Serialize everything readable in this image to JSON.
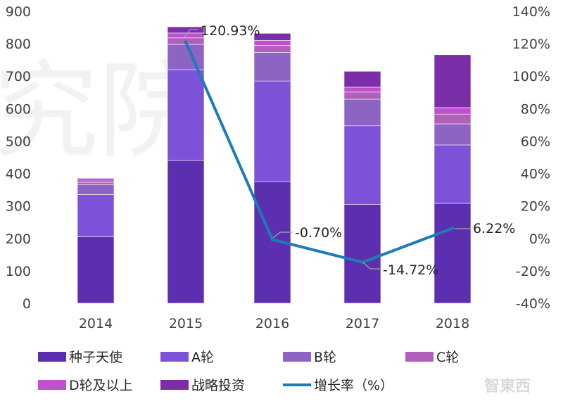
{
  "chart_data": {
    "type": "bar",
    "stacked": true,
    "categories": [
      "2014",
      "2015",
      "2016",
      "2017",
      "2018"
    ],
    "series": [
      {
        "name": "种子天使",
        "color": "#5b2fb0",
        "values": [
          205,
          440,
          375,
          305,
          308
        ]
      },
      {
        "name": "A轮",
        "color": "#7b52d8",
        "values": [
          130,
          280,
          310,
          242,
          180
        ]
      },
      {
        "name": "B轮",
        "color": "#8d64c4",
        "values": [
          30,
          78,
          88,
          82,
          65
        ]
      },
      {
        "name": "C轮",
        "color": "#b060b8",
        "values": [
          8,
          20,
          22,
          22,
          30
        ]
      },
      {
        "name": "D轮及以上",
        "color": "#c050d0",
        "values": [
          7,
          15,
          15,
          15,
          20
        ]
      },
      {
        "name": "战略投资",
        "color": "#7a2ea8",
        "values": [
          5,
          19,
          22,
          49,
          163
        ]
      }
    ],
    "line_series": {
      "name": "增长率（%）",
      "color": "#1f7ab8",
      "x": [
        "2015",
        "2016",
        "2017",
        "2018"
      ],
      "values": [
        120.93,
        -0.7,
        -14.72,
        6.22
      ],
      "labels": [
        "120.93%",
        "-0.70%",
        "-14.72%",
        "6.22%"
      ]
    },
    "y_left": {
      "min": 0,
      "max": 900,
      "step": 100,
      "ticks": [
        "0",
        "100",
        "200",
        "300",
        "400",
        "500",
        "600",
        "700",
        "800",
        "900"
      ]
    },
    "y_right": {
      "min": -40,
      "max": 140,
      "step": 20,
      "ticks": [
        "-40%",
        "-20%",
        "0%",
        "20%",
        "40%",
        "60%",
        "80%",
        "100%",
        "120%",
        "140%"
      ]
    },
    "grid": false,
    "legend_position": "bottom"
  }
}
